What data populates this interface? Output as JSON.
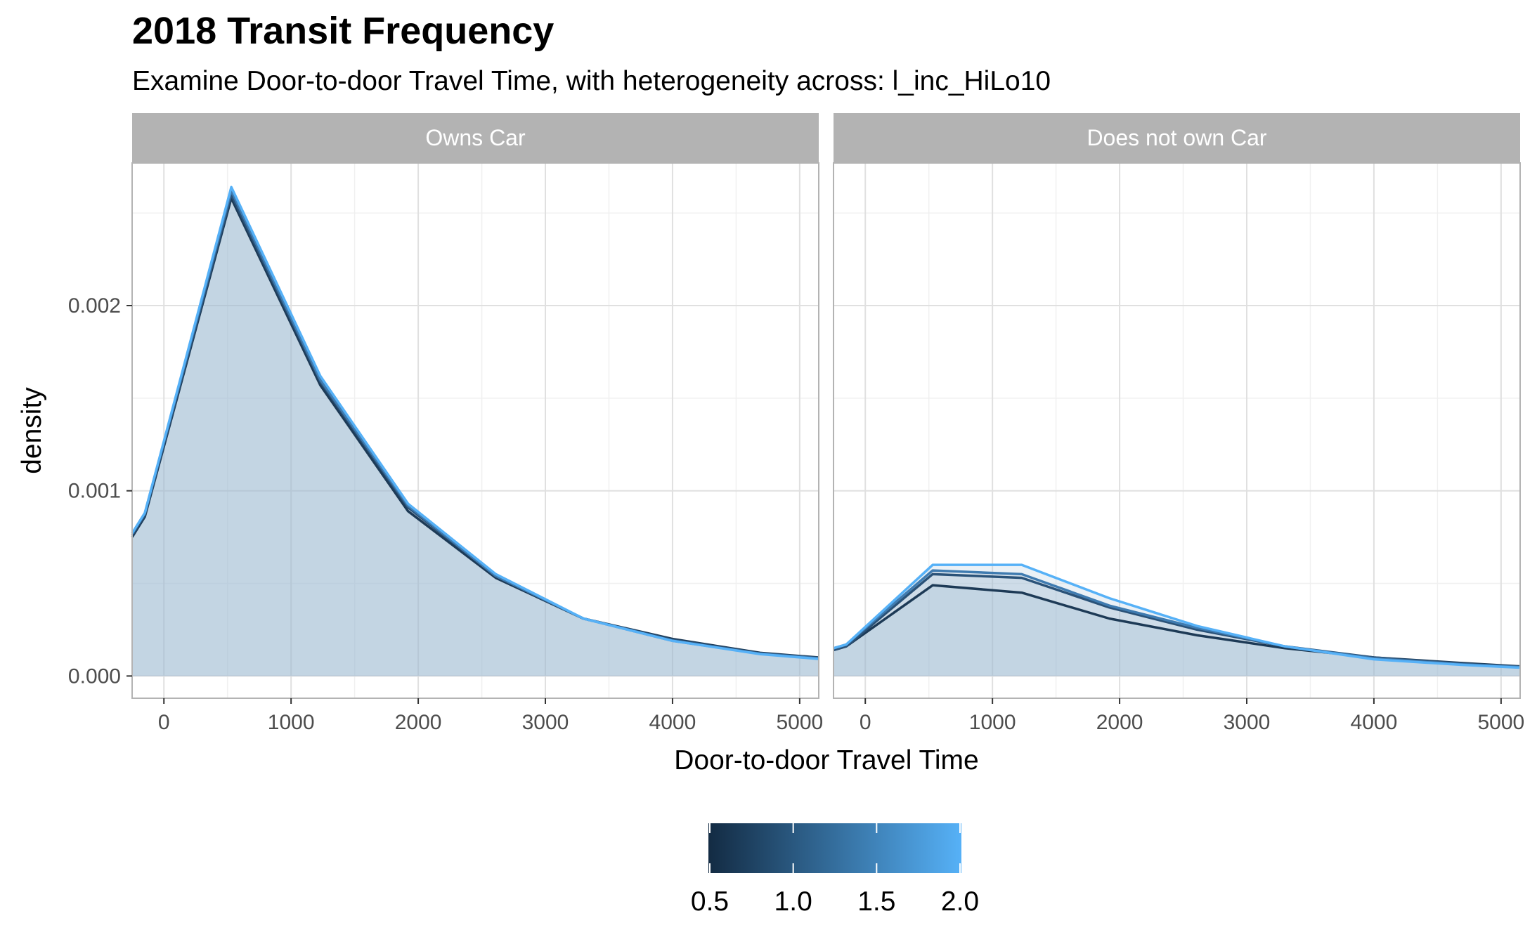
{
  "chart_data": {
    "type": "area",
    "title": "2018 Transit Frequency",
    "subtitle": "Examine Door-to-door Travel Time, with heterogeneity across: l_inc_HiLo10",
    "xlabel": "Door-to-door Travel Time",
    "ylabel": "density",
    "xlim": [
      -250,
      5150
    ],
    "ylim": [
      -0.00012,
      0.00277
    ],
    "x_ticks": [
      0,
      1000,
      2000,
      3000,
      4000,
      5000
    ],
    "x_tick_labels": [
      "0",
      "1000",
      "2000",
      "3000",
      "4000",
      "5000"
    ],
    "y_ticks": [
      0,
      0.001,
      0.002
    ],
    "y_tick_labels": [
      "0.000",
      "0.001",
      "0.002"
    ],
    "grid": true,
    "legend": {
      "position": "bottom",
      "type": "colorbar",
      "min": 0.5,
      "max": 2.0,
      "ticks": [
        0.5,
        1.0,
        1.5,
        2.0
      ],
      "tick_labels": [
        "0.5",
        "1.0",
        "1.5",
        "2.0"
      ],
      "color_low": "#132B43",
      "color_high": "#56B1F7"
    },
    "fill_color": "#9bb8d1",
    "panels": [
      {
        "strip": "Owns Car",
        "series": [
          {
            "value": 0.5,
            "color": "#1d3a56",
            "x": [
              -250,
              -150,
              530,
              1230,
              1920,
              2610,
              3300,
              4000,
              4690,
              5150
            ],
            "y": [
              0.00075,
              0.00086,
              0.00258,
              0.00157,
              0.00089,
              0.00053,
              0.00031,
              0.0002,
              0.000125,
              0.0001
            ]
          },
          {
            "value": 1.0,
            "color": "#2a5278",
            "x": [
              -250,
              -150,
              530,
              1230,
              1920,
              2610,
              3300,
              4000,
              4690,
              5150
            ],
            "y": [
              0.00076,
              0.00087,
              0.0026,
              0.00159,
              0.00091,
              0.00054,
              0.00031,
              0.000195,
              0.000122,
              9.8e-05
            ]
          },
          {
            "value": 1.5,
            "color": "#3f7bb0",
            "x": [
              -250,
              -150,
              530,
              1230,
              1920,
              2610,
              3300,
              4000,
              4690,
              5150
            ],
            "y": [
              0.00077,
              0.00088,
              0.00262,
              0.0016,
              0.00092,
              0.00054,
              0.00031,
              0.00019,
              0.00012,
              9.5e-05
            ]
          },
          {
            "value": 2.0,
            "color": "#56B1F7",
            "x": [
              -250,
              -150,
              530,
              1230,
              1920,
              2610,
              3300,
              4000,
              4690,
              5150
            ],
            "y": [
              0.00077,
              0.00088,
              0.00264,
              0.00162,
              0.00093,
              0.00055,
              0.00031,
              0.00019,
              0.000118,
              9.2e-05
            ]
          }
        ]
      },
      {
        "strip": "Does not own Car",
        "series": [
          {
            "value": 0.5,
            "color": "#1d3a56",
            "x": [
              -250,
              -150,
              530,
              1230,
              1920,
              2610,
              3300,
              4000,
              4690,
              5150
            ],
            "y": [
              0.00014,
              0.00016,
              0.00049,
              0.00045,
              0.00031,
              0.00022,
              0.00015,
              0.0001,
              7e-05,
              5.2e-05
            ]
          },
          {
            "value": 1.0,
            "color": "#2a5278",
            "x": [
              -250,
              -150,
              530,
              1230,
              1920,
              2610,
              3300,
              4000,
              4690,
              5150
            ],
            "y": [
              0.00014,
              0.00016,
              0.00055,
              0.00053,
              0.00037,
              0.00025,
              0.00016,
              0.0001,
              6.6e-05,
              5e-05
            ]
          },
          {
            "value": 1.5,
            "color": "#3f7bb0",
            "x": [
              -250,
              -150,
              530,
              1230,
              1920,
              2610,
              3300,
              4000,
              4690,
              5150
            ],
            "y": [
              0.00015,
              0.00017,
              0.00057,
              0.00055,
              0.00038,
              0.00026,
              0.00016,
              9.5e-05,
              6.3e-05,
              4.8e-05
            ]
          },
          {
            "value": 2.0,
            "color": "#56B1F7",
            "x": [
              -250,
              -150,
              530,
              1230,
              1920,
              2610,
              3300,
              4000,
              4690,
              5150
            ],
            "y": [
              0.00015,
              0.00017,
              0.0006,
              0.0006,
              0.00042,
              0.00027,
              0.00016,
              9e-05,
              6e-05,
              4.5e-05
            ]
          }
        ]
      }
    ]
  }
}
